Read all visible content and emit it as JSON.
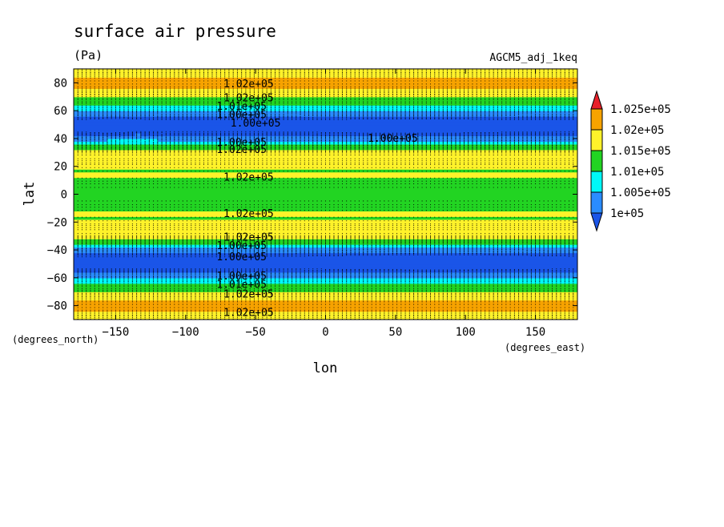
{
  "chart_data": {
    "type": "heatmap",
    "title": "surface air pressure",
    "units": "(Pa)",
    "dataset_label": "AGCM5_adj_1keq",
    "xlabel": "lon",
    "ylabel": "lat",
    "x_units_label": "(degrees_east)",
    "y_units_label": "(degrees_north)",
    "xlim": [
      -180,
      180
    ],
    "ylim": [
      -90,
      90
    ],
    "x_ticks": [
      -150,
      -100,
      -50,
      0,
      50,
      100,
      150
    ],
    "y_ticks": [
      -80,
      -60,
      -40,
      -20,
      0,
      20,
      40,
      60,
      80
    ],
    "x_tick_labels": [
      "−150",
      "−100",
      "−50",
      "0",
      "50",
      "100",
      "150"
    ],
    "y_tick_labels": [
      "−80",
      "−60",
      "−40",
      "−20",
      "0",
      "20",
      "40",
      "60",
      "80"
    ],
    "colorbar": {
      "levels": [
        "1.025e+05",
        "1.02e+05",
        "1.015e+05",
        "1.01e+05",
        "1.005e+05",
        "1e+05"
      ],
      "colors": [
        "#e8202a",
        "#f7a300",
        "#fff22a",
        "#22d422",
        "#00f8f8",
        "#2a8cff",
        "#1a55e8"
      ]
    },
    "level_colors": [
      {
        "min": 99000,
        "max": 100000,
        "color": "#1a55e8"
      },
      {
        "min": 100000,
        "max": 100500,
        "color": "#2a8cff"
      },
      {
        "min": 100500,
        "max": 101000,
        "color": "#00f8f8"
      },
      {
        "min": 101000,
        "max": 101500,
        "color": "#22d422"
      },
      {
        "min": 101500,
        "max": 102000,
        "color": "#fff22a"
      },
      {
        "min": 102000,
        "max": 102500,
        "color": "#f7a300"
      }
    ],
    "contour_labels": [
      {
        "text": "1.02e+05",
        "lon": -55,
        "lat": 79
      },
      {
        "text": "1.02e+05",
        "lon": -55,
        "lat": 69
      },
      {
        "text": "1.01e+05",
        "lon": -60,
        "lat": 63
      },
      {
        "text": "1.00e+05",
        "lon": -60,
        "lat": 57
      },
      {
        "text": "1.00e+05",
        "lon": -50,
        "lat": 51
      },
      {
        "text": "1.00e+05",
        "lon": 48,
        "lat": 40
      },
      {
        "text": "1.00e+05",
        "lon": -60,
        "lat": 37
      },
      {
        "text": "1.02e+05",
        "lon": -60,
        "lat": 32
      },
      {
        "text": "1.02e+05",
        "lon": -55,
        "lat": 12
      },
      {
        "text": "1.02e+05",
        "lon": -55,
        "lat": -14
      },
      {
        "text": "1.02e+05",
        "lon": -55,
        "lat": -31
      },
      {
        "text": "1.00e+05",
        "lon": -60,
        "lat": -37
      },
      {
        "text": "1.00e+05",
        "lon": -60,
        "lat": -45
      },
      {
        "text": "1.00e+05",
        "lon": -60,
        "lat": -59
      },
      {
        "text": "1.01e+05",
        "lon": -60,
        "lat": -65
      },
      {
        "text": "1.02e+05",
        "lon": -55,
        "lat": -72
      },
      {
        "text": "1.02e+05",
        "lon": -55,
        "lat": -85
      }
    ]
  }
}
